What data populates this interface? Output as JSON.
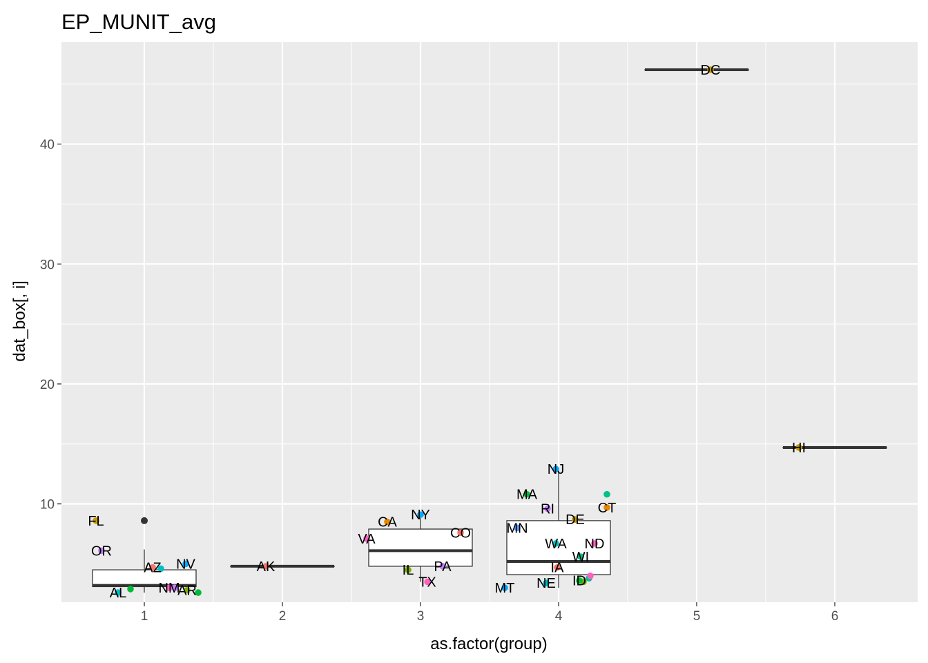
{
  "chart_data": {
    "type": "box",
    "title": "EP_MUNIT_avg",
    "xlabel": "as.factor(group)",
    "ylabel": "dat_box[, i]",
    "categories": [
      "1",
      "2",
      "3",
      "4",
      "5",
      "6"
    ],
    "x_range": [
      0.4,
      6.6
    ],
    "ylim": [
      1.8,
      48.5
    ],
    "y_ticks": [
      10,
      20,
      30,
      40
    ],
    "grid": true,
    "boxes": [
      {
        "group": 1,
        "q1": 3.1,
        "median": 3.2,
        "q3": 4.5,
        "whisker_low": 2.6,
        "whisker_high": 6.2,
        "outliers": [
          8.6
        ]
      },
      {
        "group": 2,
        "q1": 4.8,
        "median": 4.8,
        "q3": 4.8,
        "whisker_low": 4.8,
        "whisker_high": 4.8,
        "outliers": []
      },
      {
        "group": 3,
        "q1": 4.8,
        "median": 6.1,
        "q3": 7.9,
        "whisker_low": 3.5,
        "whisker_high": 9.1,
        "outliers": []
      },
      {
        "group": 4,
        "q1": 4.1,
        "median": 5.2,
        "q3": 8.6,
        "whisker_low": 3.0,
        "whisker_high": 12.9,
        "outliers": []
      },
      {
        "group": 5,
        "q1": 46.2,
        "median": 46.2,
        "q3": 46.2,
        "whisker_low": 46.2,
        "whisker_high": 46.2,
        "outliers": []
      },
      {
        "group": 6,
        "q1": 14.7,
        "median": 14.7,
        "q3": 14.7,
        "whisker_low": 14.7,
        "whisker_high": 14.7,
        "outliers": []
      }
    ],
    "points": [
      {
        "label": "FL",
        "x": 0.65,
        "y": 8.6,
        "color": "#C49A00"
      },
      {
        "label": "OR",
        "x": 0.69,
        "y": 6.1,
        "color": "#C77CFF"
      },
      {
        "label": "AZ",
        "x": 1.06,
        "y": 4.7,
        "color": "#F8766D"
      },
      {
        "label": "NV",
        "x": 1.3,
        "y": 5.0,
        "color": "#00A9FF"
      },
      {
        "label": "AL",
        "x": 0.81,
        "y": 2.6,
        "color": "#00BFC4"
      },
      {
        "label": "NM",
        "x": 1.18,
        "y": 3.0,
        "color": "#FF61C3"
      },
      {
        "label": "AR",
        "x": 1.31,
        "y": 2.8,
        "color": "#7CAE00"
      },
      {
        "label": "AK",
        "x": 1.88,
        "y": 4.8,
        "color": "#F8766D"
      },
      {
        "label": "CA",
        "x": 2.76,
        "y": 8.5,
        "color": "#E58700"
      },
      {
        "label": "NY",
        "x": 3.0,
        "y": 9.1,
        "color": "#00A9FF"
      },
      {
        "label": "VA",
        "x": 2.61,
        "y": 7.1,
        "color": "#FF61C3"
      },
      {
        "label": "CO",
        "x": 3.29,
        "y": 7.6,
        "color": "#F8766D"
      },
      {
        "label": "IL",
        "x": 2.91,
        "y": 4.5,
        "color": "#7CAE00"
      },
      {
        "label": "PA",
        "x": 3.16,
        "y": 4.8,
        "color": "#C77CFF"
      },
      {
        "label": "TX",
        "x": 3.05,
        "y": 3.5,
        "color": "#FF61C3"
      },
      {
        "label": "NJ",
        "x": 3.98,
        "y": 12.9,
        "color": "#00A9FF"
      },
      {
        "label": "MA",
        "x": 3.77,
        "y": 10.8,
        "color": "#00BA38"
      },
      {
        "label": "RI",
        "x": 3.92,
        "y": 9.6,
        "color": "#C77CFF"
      },
      {
        "label": "CT",
        "x": 4.35,
        "y": 9.7,
        "color": "#E58700"
      },
      {
        "label": "DE",
        "x": 4.12,
        "y": 8.7,
        "color": "#C49A00"
      },
      {
        "label": "MN",
        "x": 3.7,
        "y": 8.0,
        "color": "#619CFF"
      },
      {
        "label": "WA",
        "x": 3.98,
        "y": 6.7,
        "color": "#00BFC4"
      },
      {
        "label": "ND",
        "x": 4.26,
        "y": 6.7,
        "color": "#FF61C3"
      },
      {
        "label": "WI",
        "x": 4.16,
        "y": 5.6,
        "color": "#00C08B"
      },
      {
        "label": "IA",
        "x": 3.99,
        "y": 4.7,
        "color": "#F8766D"
      },
      {
        "label": "MT",
        "x": 3.61,
        "y": 3.0,
        "color": "#00A9FF"
      },
      {
        "label": "NE",
        "x": 3.91,
        "y": 3.4,
        "color": "#00BFC4"
      },
      {
        "label": "ID",
        "x": 4.15,
        "y": 3.6,
        "color": "#00BA38"
      },
      {
        "label": "DC",
        "x": 5.1,
        "y": 46.2,
        "color": "#C49A00"
      },
      {
        "label": "HI",
        "x": 5.74,
        "y": 14.7,
        "color": "#C49A00"
      }
    ],
    "unlabeled_points": [
      {
        "x": 0.9,
        "y": 2.9,
        "color": "#00BA38"
      },
      {
        "x": 1.12,
        "y": 4.6,
        "color": "#00BFC4"
      },
      {
        "x": 1.22,
        "y": 3.0,
        "color": "#C77CFF"
      },
      {
        "x": 1.39,
        "y": 2.6,
        "color": "#00BA38"
      },
      {
        "x": 4.35,
        "y": 10.8,
        "color": "#00C08B"
      },
      {
        "x": 4.22,
        "y": 3.8,
        "color": "#00C08B"
      },
      {
        "x": 4.23,
        "y": 4.0,
        "color": "#FF61C3"
      },
      {
        "x": 4.18,
        "y": 3.5,
        "color": "#7CAE00"
      }
    ]
  }
}
